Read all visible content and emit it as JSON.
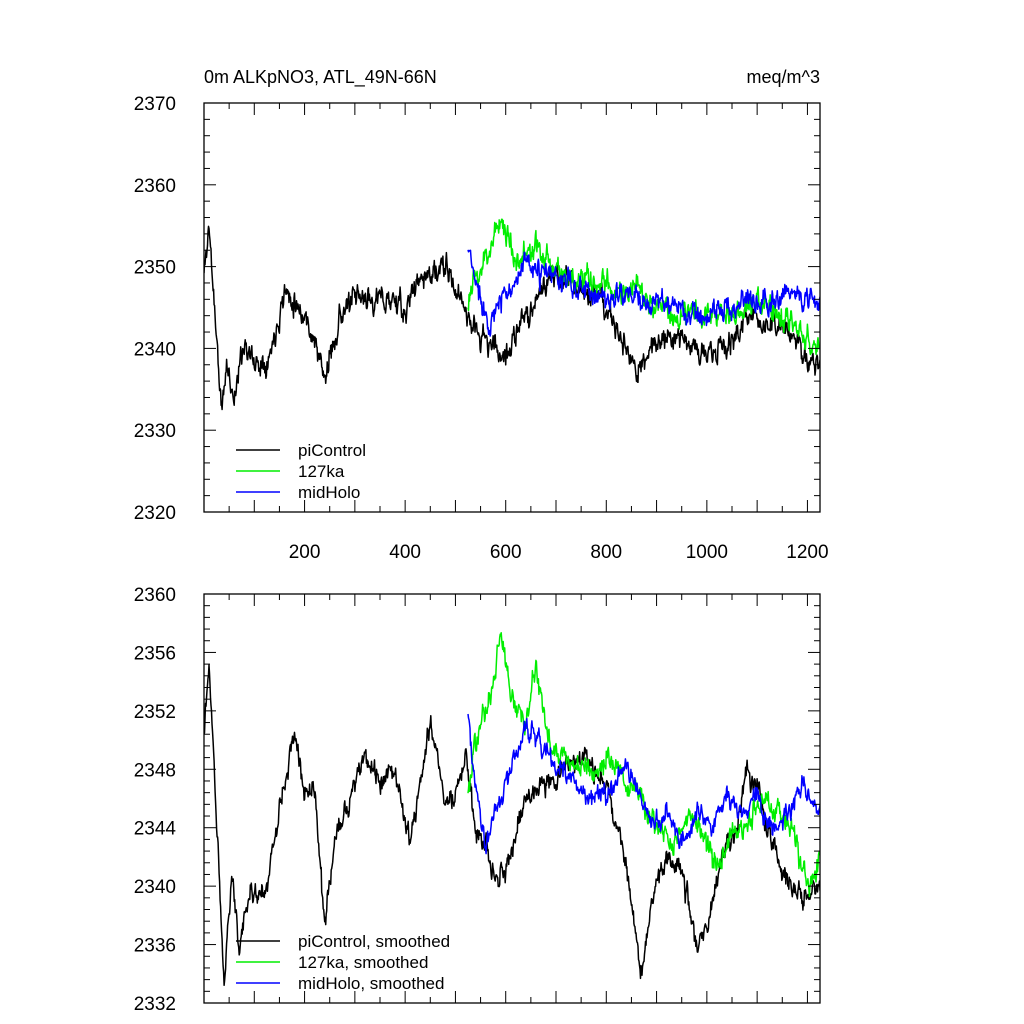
{
  "chart_data": [
    {
      "type": "line",
      "title": "0m ALKpNO3, ATL_49N-66N",
      "units": "meq/m^3",
      "xlim": [
        0,
        1225
      ],
      "ylim": [
        2320,
        2370
      ],
      "x_ticks": [
        200,
        400,
        600,
        800,
        1000,
        1200
      ],
      "x_tick_labels": [
        "200",
        "400",
        "600",
        "800",
        "1000",
        "1200"
      ],
      "y_ticks": [
        2320,
        2330,
        2340,
        2350,
        2360,
        2370
      ],
      "y_tick_labels": [
        "2320",
        "2330",
        "2340",
        "2350",
        "2360",
        "2370"
      ],
      "legend_position": "bottom-left",
      "series": [
        {
          "name": "piControl",
          "color": "#000000",
          "x_start": 0,
          "x_end": 1225,
          "knots": [
            [
              0,
              2349
            ],
            [
              10,
              2355
            ],
            [
              20,
              2346
            ],
            [
              35,
              2332
            ],
            [
              45,
              2338
            ],
            [
              60,
              2334
            ],
            [
              80,
              2341
            ],
            [
              100,
              2338
            ],
            [
              130,
              2339
            ],
            [
              160,
              2347
            ],
            [
              180,
              2346
            ],
            [
              200,
              2344
            ],
            [
              220,
              2341
            ],
            [
              240,
              2336
            ],
            [
              270,
              2344
            ],
            [
              300,
              2346
            ],
            [
              340,
              2346
            ],
            [
              380,
              2346
            ],
            [
              400,
              2344
            ],
            [
              420,
              2348
            ],
            [
              440,
              2349
            ],
            [
              460,
              2349
            ],
            [
              480,
              2350
            ],
            [
              500,
              2347
            ],
            [
              520,
              2345
            ],
            [
              540,
              2342
            ],
            [
              560,
              2341
            ],
            [
              580,
              2340
            ],
            [
              600,
              2339
            ],
            [
              640,
              2344
            ],
            [
              680,
              2348
            ],
            [
              720,
              2349
            ],
            [
              760,
              2347
            ],
            [
              800,
              2345
            ],
            [
              830,
              2341
            ],
            [
              860,
              2337
            ],
            [
              900,
              2341
            ],
            [
              940,
              2342
            ],
            [
              1000,
              2339
            ],
            [
              1040,
              2340
            ],
            [
              1080,
              2344
            ],
            [
              1120,
              2343
            ],
            [
              1160,
              2342
            ],
            [
              1200,
              2339
            ],
            [
              1225,
              2338
            ]
          ],
          "noise_amplitude": 3.2,
          "seed": 11
        },
        {
          "name": "127ka",
          "color": "#00ee00",
          "x_start": 525,
          "x_end": 1225,
          "knots": [
            [
              525,
              2346
            ],
            [
              560,
              2351
            ],
            [
              590,
              2356
            ],
            [
              620,
              2351
            ],
            [
              660,
              2352
            ],
            [
              700,
              2350
            ],
            [
              740,
              2348
            ],
            [
              780,
              2348
            ],
            [
              820,
              2347
            ],
            [
              860,
              2347
            ],
            [
              900,
              2345
            ],
            [
              940,
              2344
            ],
            [
              980,
              2345
            ],
            [
              1020,
              2344
            ],
            [
              1060,
              2345
            ],
            [
              1100,
              2346
            ],
            [
              1140,
              2344
            ],
            [
              1180,
              2343
            ],
            [
              1210,
              2340
            ],
            [
              1225,
              2341
            ]
          ],
          "noise_amplitude": 3.4,
          "seed": 23
        },
        {
          "name": "midHolo",
          "color": "#0000ff",
          "x_start": 525,
          "x_end": 1225,
          "knots": [
            [
              525,
              2352
            ],
            [
              545,
              2347
            ],
            [
              570,
              2343
            ],
            [
              600,
              2347
            ],
            [
              640,
              2350
            ],
            [
              680,
              2349
            ],
            [
              720,
              2348
            ],
            [
              760,
              2347
            ],
            [
              800,
              2346
            ],
            [
              840,
              2347
            ],
            [
              880,
              2345
            ],
            [
              920,
              2346
            ],
            [
              960,
              2344
            ],
            [
              1000,
              2344
            ],
            [
              1040,
              2345
            ],
            [
              1080,
              2346
            ],
            [
              1120,
              2346
            ],
            [
              1160,
              2347
            ],
            [
              1200,
              2346
            ],
            [
              1225,
              2345
            ]
          ],
          "noise_amplitude": 3.1,
          "seed": 37
        }
      ]
    },
    {
      "type": "line",
      "title": "",
      "xlim": [
        0,
        1225
      ],
      "ylim": [
        2332,
        2360
      ],
      "x_ticks": [
        200,
        400,
        600,
        800,
        1000,
        1200
      ],
      "y_ticks": [
        2332,
        2336,
        2340,
        2344,
        2348,
        2352,
        2356,
        2360
      ],
      "y_tick_labels": [
        "2332",
        "2336",
        "2340",
        "2344",
        "2348",
        "2352",
        "2356",
        "2360"
      ],
      "legend_position": "bottom-left",
      "series": [
        {
          "name": "piControl, smoothed",
          "color": "#000000",
          "x_start": 0,
          "x_end": 1225,
          "knots": [
            [
              0,
              2351
            ],
            [
              10,
              2355
            ],
            [
              25,
              2345
            ],
            [
              40,
              2333
            ],
            [
              55,
              2341
            ],
            [
              70,
              2336
            ],
            [
              90,
              2340
            ],
            [
              120,
              2339
            ],
            [
              150,
              2345
            ],
            [
              180,
              2351
            ],
            [
              200,
              2346
            ],
            [
              220,
              2347
            ],
            [
              240,
              2337
            ],
            [
              260,
              2343
            ],
            [
              290,
              2346
            ],
            [
              320,
              2349
            ],
            [
              350,
              2347
            ],
            [
              380,
              2348
            ],
            [
              410,
              2343
            ],
            [
              430,
              2347
            ],
            [
              450,
              2351
            ],
            [
              480,
              2346
            ],
            [
              500,
              2346
            ],
            [
              520,
              2349
            ],
            [
              540,
              2344
            ],
            [
              560,
              2343
            ],
            [
              580,
              2340
            ],
            [
              600,
              2341
            ],
            [
              640,
              2346
            ],
            [
              680,
              2347
            ],
            [
              720,
              2348
            ],
            [
              760,
              2349
            ],
            [
              800,
              2347
            ],
            [
              830,
              2343
            ],
            [
              850,
              2339
            ],
            [
              870,
              2334
            ],
            [
              890,
              2339
            ],
            [
              920,
              2342
            ],
            [
              950,
              2341
            ],
            [
              980,
              2336
            ],
            [
              1000,
              2337
            ],
            [
              1030,
              2342
            ],
            [
              1060,
              2344
            ],
            [
              1080,
              2348
            ],
            [
              1100,
              2347
            ],
            [
              1130,
              2343
            ],
            [
              1160,
              2340
            ],
            [
              1190,
              2339
            ],
            [
              1210,
              2340
            ],
            [
              1225,
              2340
            ]
          ],
          "noise_amplitude": 1.6,
          "seed": 51
        },
        {
          "name": "127ka, smoothed",
          "color": "#00ee00",
          "x_start": 525,
          "x_end": 1225,
          "knots": [
            [
              525,
              2347
            ],
            [
              550,
              2351
            ],
            [
              575,
              2354
            ],
            [
              590,
              2358
            ],
            [
              610,
              2353
            ],
            [
              640,
              2351
            ],
            [
              660,
              2355
            ],
            [
              690,
              2349
            ],
            [
              720,
              2349
            ],
            [
              750,
              2348
            ],
            [
              780,
              2348
            ],
            [
              810,
              2349
            ],
            [
              840,
              2347
            ],
            [
              870,
              2346
            ],
            [
              900,
              2344
            ],
            [
              930,
              2343
            ],
            [
              960,
              2345
            ],
            [
              990,
              2344
            ],
            [
              1020,
              2341
            ],
            [
              1050,
              2344
            ],
            [
              1080,
              2344
            ],
            [
              1110,
              2346
            ],
            [
              1140,
              2345
            ],
            [
              1170,
              2344
            ],
            [
              1200,
              2340
            ],
            [
              1225,
              2342
            ]
          ],
          "noise_amplitude": 1.7,
          "seed": 63
        },
        {
          "name": "midHolo, smoothed",
          "color": "#0000ff",
          "x_start": 525,
          "x_end": 1225,
          "knots": [
            [
              525,
              2352
            ],
            [
              540,
              2347
            ],
            [
              560,
              2343
            ],
            [
              590,
              2346
            ],
            [
              620,
              2349
            ],
            [
              650,
              2351
            ],
            [
              680,
              2349
            ],
            [
              710,
              2348
            ],
            [
              740,
              2347
            ],
            [
              770,
              2346
            ],
            [
              800,
              2346
            ],
            [
              830,
              2348
            ],
            [
              860,
              2347
            ],
            [
              890,
              2344
            ],
            [
              920,
              2345
            ],
            [
              950,
              2343
            ],
            [
              980,
              2345
            ],
            [
              1010,
              2344
            ],
            [
              1040,
              2346
            ],
            [
              1070,
              2345
            ],
            [
              1100,
              2346
            ],
            [
              1130,
              2344
            ],
            [
              1160,
              2345
            ],
            [
              1190,
              2347
            ],
            [
              1210,
              2346
            ],
            [
              1225,
              2345
            ]
          ],
          "noise_amplitude": 1.5,
          "seed": 77
        }
      ]
    }
  ]
}
